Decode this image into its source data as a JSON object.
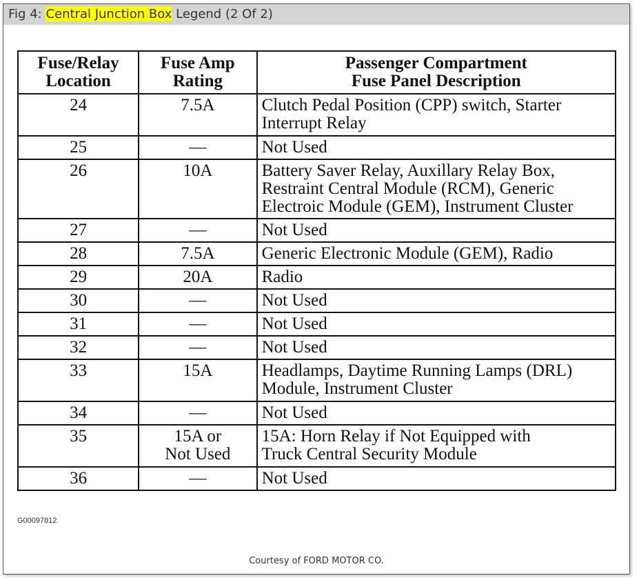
{
  "title": {
    "prefix": "Fig 4: ",
    "highlight": "Central Junction Box",
    "suffix": " Legend (2 Of 2)"
  },
  "table": {
    "headers": [
      [
        "Fuse/Relay",
        "Location"
      ],
      [
        "Fuse Amp",
        "Rating"
      ],
      [
        "Passenger Compartment",
        "Fuse Panel Description"
      ]
    ],
    "rows": [
      {
        "loc": "24",
        "amp": [
          "7.5A"
        ],
        "desc": [
          "Clutch Pedal Position (CPP) switch, Starter",
          "Interrupt Relay"
        ]
      },
      {
        "loc": "25",
        "amp": [
          "—"
        ],
        "desc": [
          "Not Used"
        ]
      },
      {
        "loc": "26",
        "amp": [
          "10A"
        ],
        "desc": [
          "Battery Saver Relay, Auxillary Relay Box,",
          "Restraint Central Module (RCM), Generic",
          "Electroic Module (GEM), Instrument Cluster"
        ]
      },
      {
        "loc": "27",
        "amp": [
          "—"
        ],
        "desc": [
          "Not Used"
        ]
      },
      {
        "loc": "28",
        "amp": [
          "7.5A"
        ],
        "desc": [
          "Generic Electronic Module (GEM), Radio"
        ]
      },
      {
        "loc": "29",
        "amp": [
          "20A"
        ],
        "desc": [
          "Radio"
        ]
      },
      {
        "loc": "30",
        "amp": [
          "—"
        ],
        "desc": [
          "Not Used"
        ]
      },
      {
        "loc": "31",
        "amp": [
          "—"
        ],
        "desc": [
          "Not Used"
        ]
      },
      {
        "loc": "32",
        "amp": [
          "—"
        ],
        "desc": [
          "Not Used"
        ]
      },
      {
        "loc": "33",
        "amp": [
          "15A"
        ],
        "desc": [
          "Headlamps, Daytime Running Lamps (DRL)",
          "Module, Instrument Cluster"
        ]
      },
      {
        "loc": "34",
        "amp": [
          "—"
        ],
        "desc": [
          "Not Used"
        ]
      },
      {
        "loc": "35",
        "amp": [
          "15A or",
          "Not Used"
        ],
        "desc": [
          "15A: Horn Relay if Not Equipped with",
          "Truck Central Security Module"
        ]
      },
      {
        "loc": "36",
        "amp": [
          "—"
        ],
        "desc": [
          "Not Used"
        ]
      }
    ]
  },
  "figure_code": "G00097812",
  "courtesy": "Courtesy of FORD MOTOR CO.",
  "colors": {
    "highlight": "#ffff00",
    "titlebar": "#d3d3d3"
  }
}
